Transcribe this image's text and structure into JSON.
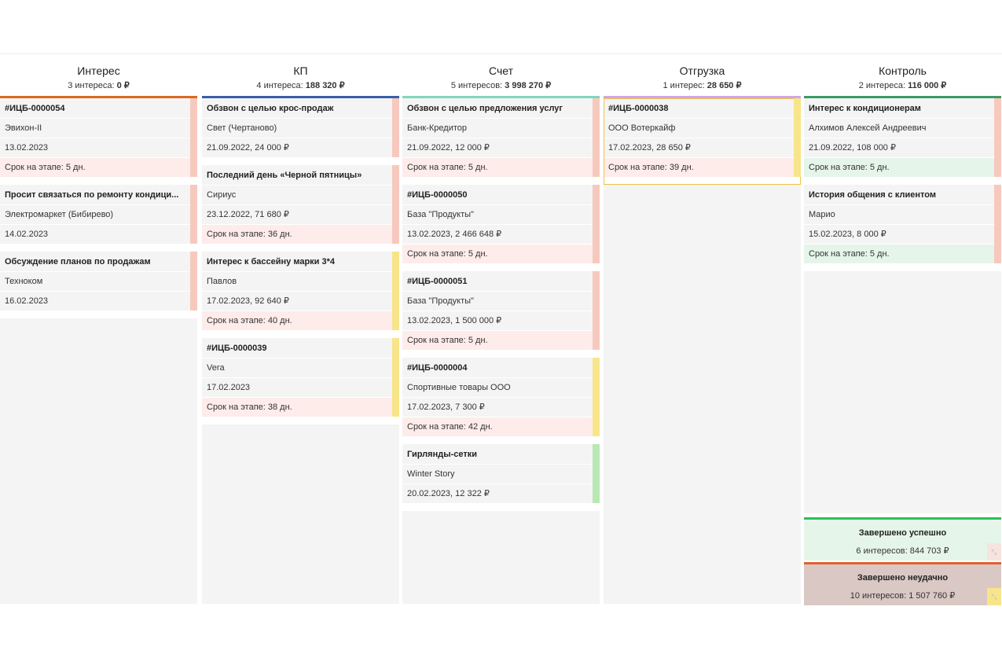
{
  "columns": [
    {
      "title": "Интерес",
      "count_text": "3 интереса: ",
      "sum_text": "0 ₽",
      "bar_color": "#d9681f",
      "cards": [
        {
          "title": "#ИЦБ-0000054",
          "client": "Эвихон-II",
          "info": "13.02.2023",
          "term": "Срок на этапе: 5 дн.",
          "stripe": "#f7c9be",
          "term_style": "red"
        },
        {
          "title": "Просит связаться по ремонту кондици...",
          "client": "Электромаркет (Бибирево)",
          "info": "14.02.2023",
          "term": "",
          "stripe": "#f7c9be",
          "term_style": "none"
        },
        {
          "title": "Обсуждение планов по продажам",
          "client": "Техноком",
          "info": "16.02.2023",
          "term": "",
          "stripe": "#f7c9be",
          "term_style": "none"
        }
      ]
    },
    {
      "title": "КП",
      "count_text": "4 интереса: ",
      "sum_text": "188 320 ₽",
      "bar_color": "#3a5fa8",
      "cards": [
        {
          "title": "Обзвон с целью крос-продаж",
          "client": "Свет (Чертаново)",
          "info": "21.09.2022, 24 000 ₽",
          "term": "",
          "stripe": "#f7c9be",
          "term_style": "none"
        },
        {
          "title": "Последний день «Черной пятницы»",
          "client": "Сириус",
          "info": "23.12.2022, 71 680 ₽",
          "term": "Срок на этапе: 36 дн.",
          "stripe": "#f7c9be",
          "term_style": "red"
        },
        {
          "title": "Интерес к бассейну марки 3*4",
          "client": "Павлов",
          "info": "17.02.2023, 92 640 ₽",
          "term": "Срок на этапе: 40 дн.",
          "stripe": "#f8e58a",
          "term_style": "red"
        },
        {
          "title": "#ИЦБ-0000039",
          "client": "Vera",
          "info": "17.02.2023",
          "term": "Срок на этапе: 38 дн.",
          "stripe": "#f8e58a",
          "term_style": "red"
        }
      ]
    },
    {
      "title": "Счет",
      "count_text": "5 интересов: ",
      "sum_text": "3 998 270 ₽",
      "bar_color": "#7fd6be",
      "cards": [
        {
          "title": "Обзвон с целью предложения услуг",
          "client": "Банк-Кредитор",
          "info": "21.09.2022, 12 000 ₽",
          "term": "Срок на этапе: 5 дн.",
          "stripe": "#f7c9be",
          "term_style": "red"
        },
        {
          "title": "#ИЦБ-0000050",
          "client": "База \"Продукты\"",
          "info": "13.02.2023, 2 466 648 ₽",
          "term": "Срок на этапе: 5 дн.",
          "stripe": "#f7c9be",
          "term_style": "red"
        },
        {
          "title": "#ИЦБ-0000051",
          "client": "База \"Продукты\"",
          "info": "13.02.2023, 1 500 000 ₽",
          "term": "Срок на этапе: 5 дн.",
          "stripe": "#f7c9be",
          "term_style": "red"
        },
        {
          "title": "#ИЦБ-0000004",
          "client": "Спортивные товары ООО",
          "info": "17.02.2023, 7 300 ₽",
          "term": "Срок на этапе: 42 дн.",
          "stripe": "#f8e58a",
          "term_style": "red"
        },
        {
          "title": "Гирлянды-сетки",
          "client": "Winter Story",
          "info": "20.02.2023, 12 322 ₽",
          "term": "",
          "stripe": "#b9e8b4",
          "term_style": "none"
        }
      ]
    },
    {
      "title": "Отгрузка",
      "count_text": "1 интерес: ",
      "sum_text": "28 650 ₽",
      "bar_color": "#cfa6e8",
      "cards": [
        {
          "title": "#ИЦБ-0000038",
          "client": "ООО Вотеркайф",
          "info": "17.02.2023, 28 650 ₽",
          "term": "Срок на этапе: 39 дн.",
          "stripe": "#f8e58a",
          "term_style": "red",
          "selected": true
        }
      ]
    },
    {
      "title": "Контроль",
      "count_text": "2 интереса: ",
      "sum_text": "116 000 ₽",
      "bar_color": "#3d9a66",
      "cards": [
        {
          "title": "Интерес к кондиционерам",
          "client": "Алхимов Алексей Андреевич",
          "info": "21.09.2022, 108 000 ₽",
          "term": "Срок на этапе: 5 дн.",
          "stripe": "#f7c9be",
          "term_style": "green"
        },
        {
          "title": "История общения с клиентом",
          "client": "Марио",
          "info": "15.02.2023, 8 000 ₽",
          "term": "Срок на этапе: 5 дн.",
          "stripe": "#f7c9be",
          "term_style": "green"
        }
      ]
    }
  ],
  "final_stages": {
    "success": {
      "title": "Завершено успешно",
      "summary": "6 интересов: 844 703 ₽",
      "bar_color": "#2fbf5a",
      "bg": "#e6f5ea",
      "expand_bg": "#f7e3e0"
    },
    "fail": {
      "title": "Завершено неудачно",
      "summary": "10 интересов: 1 507 760 ₽",
      "bar_color": "#e06030",
      "bg": "#d9c8c4",
      "expand_bg": "#f8e58a"
    }
  }
}
